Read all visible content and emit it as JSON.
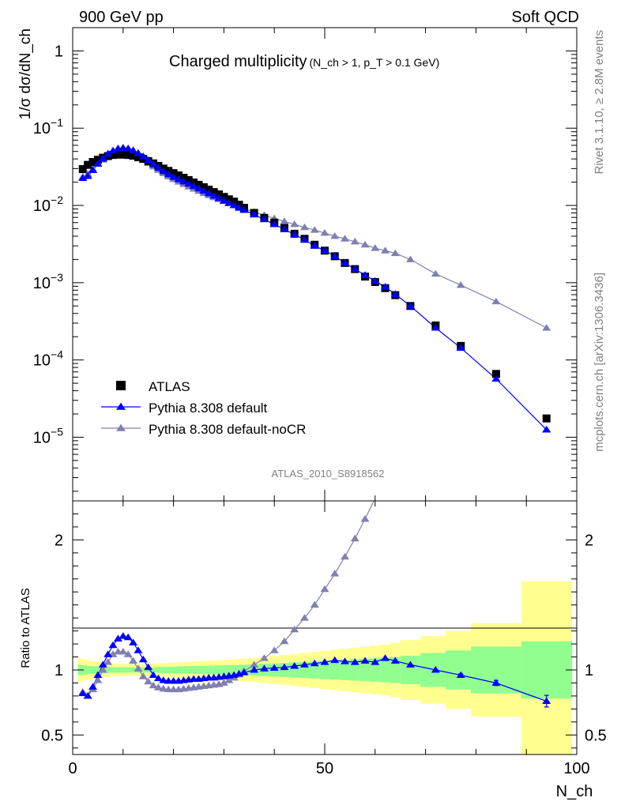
{
  "header": {
    "left": "900 GeV pp",
    "right": "Soft QCD"
  },
  "side": {
    "rivet": "Rivet 3.1.10, ≥ 2.8M events",
    "mcplots": "mcplots.cern.ch [arXiv:1306.3436]"
  },
  "chart_data": [
    {
      "type": "scatter",
      "title": "Charged multiplicity",
      "title_cut": "(N_ch > 1, p_T > 0.1 GeV)",
      "ylabel": "1/σ dσ/dN_ch",
      "yscale": "log",
      "ylim": [
        1.5e-06,
        2.0
      ],
      "xlim": [
        0,
        100
      ],
      "analysis": "ATLAS_2010_S8918562",
      "y_ticks": [
        {
          "label_base": "1",
          "label_exp": "",
          "value": 1
        },
        {
          "label_base": "10",
          "label_exp": "−1",
          "value": 0.1
        },
        {
          "label_base": "10",
          "label_exp": "−2",
          "value": 0.01
        },
        {
          "label_base": "10",
          "label_exp": "−3",
          "value": 0.001
        },
        {
          "label_base": "10",
          "label_exp": "−4",
          "value": 0.0001
        },
        {
          "label_base": "10",
          "label_exp": "−5",
          "value": 1e-05
        }
      ],
      "legend": [
        {
          "name": "ATLAS",
          "marker": "square",
          "color": "#000000"
        },
        {
          "name": "Pythia 8.308 default",
          "marker": "triangle",
          "color": "#0000ff"
        },
        {
          "name": "Pythia 8.308 default-noCR",
          "marker": "triangle",
          "color": "#8080b0"
        }
      ],
      "legend_position": "bottom-left",
      "series": [
        {
          "name": "ATLAS",
          "x": [
            2,
            3,
            4,
            5,
            6,
            7,
            8,
            9,
            10,
            11,
            12,
            13,
            14,
            15,
            16,
            17,
            18,
            19,
            20,
            21,
            22,
            23,
            24,
            25,
            26,
            27,
            28,
            29,
            30,
            31,
            32,
            33,
            34,
            36,
            38,
            40,
            42,
            44,
            46,
            48,
            50,
            52,
            54,
            56,
            58,
            60,
            62,
            64,
            67,
            72,
            77,
            84,
            94
          ],
          "y": [
            0.0295,
            0.0335,
            0.0365,
            0.039,
            0.0415,
            0.0435,
            0.045,
            0.0455,
            0.0455,
            0.045,
            0.044,
            0.042,
            0.04,
            0.0375,
            0.035,
            0.0325,
            0.03,
            0.028,
            0.0262,
            0.0245,
            0.0228,
            0.0213,
            0.0198,
            0.0185,
            0.0172,
            0.016,
            0.0149,
            0.0139,
            0.0129,
            0.012,
            0.0112,
            0.0102,
            0.0093,
            0.008,
            0.0069,
            0.006,
            0.0051,
            0.0043,
            0.0037,
            0.0031,
            0.0026,
            0.0022,
            0.0018,
            0.0015,
            0.0012,
            0.00102,
            0.00085,
            0.00069,
            0.0005,
            0.00028,
            0.000152,
            6.6e-05,
            1.75e-05
          ]
        },
        {
          "name": "Pythia 8.308 default",
          "x": [
            2,
            3,
            4,
            5,
            6,
            7,
            8,
            9,
            10,
            11,
            12,
            13,
            14,
            15,
            16,
            17,
            18,
            19,
            20,
            21,
            22,
            23,
            24,
            25,
            26,
            27,
            28,
            29,
            30,
            31,
            32,
            33,
            34,
            36,
            38,
            40,
            42,
            44,
            46,
            48,
            50,
            52,
            54,
            56,
            58,
            60,
            62,
            64,
            67,
            72,
            77,
            84,
            94
          ],
          "y": [
            0.0225,
            0.024,
            0.0285,
            0.0345,
            0.0405,
            0.0465,
            0.051,
            0.0545,
            0.0555,
            0.0545,
            0.0515,
            0.0475,
            0.043,
            0.0385,
            0.034,
            0.0305,
            0.0275,
            0.0252,
            0.0233,
            0.0217,
            0.0203,
            0.019,
            0.0177,
            0.0165,
            0.0154,
            0.0143,
            0.0133,
            0.0124,
            0.0115,
            0.0107,
            0.01,
            0.0093,
            0.0087,
            0.0076,
            0.0066,
            0.0057,
            0.0049,
            0.0042,
            0.0036,
            0.003,
            0.0026,
            0.0022,
            0.0018,
            0.0015,
            0.00125,
            0.00105,
            0.00088,
            0.00071,
            0.0005,
            0.00026,
            0.000143,
            5.7e-05,
            1.25e-05
          ]
        },
        {
          "name": "Pythia 8.308 default-noCR",
          "x": [
            2,
            3,
            4,
            5,
            6,
            7,
            8,
            9,
            10,
            11,
            12,
            13,
            14,
            15,
            16,
            17,
            18,
            19,
            20,
            21,
            22,
            23,
            24,
            25,
            26,
            27,
            28,
            29,
            30,
            31,
            32,
            33,
            34,
            36,
            38,
            40,
            42,
            44,
            46,
            48,
            50,
            52,
            54,
            56,
            58,
            60,
            62,
            64,
            67,
            72,
            77,
            84,
            94
          ],
          "y": [
            0.0235,
            0.0255,
            0.0295,
            0.0345,
            0.039,
            0.043,
            0.047,
            0.049,
            0.0495,
            0.0485,
            0.046,
            0.0425,
            0.039,
            0.0352,
            0.0318,
            0.0287,
            0.026,
            0.0237,
            0.0218,
            0.0202,
            0.0188,
            0.0175,
            0.0164,
            0.0153,
            0.0144,
            0.0135,
            0.0127,
            0.012,
            0.0113,
            0.0107,
            0.0101,
            0.0096,
            0.0091,
            0.0082,
            0.0075,
            0.0068,
            0.0062,
            0.0057,
            0.0052,
            0.0048,
            0.0044,
            0.004,
            0.0037,
            0.0034,
            0.0031,
            0.0028,
            0.0026,
            0.0024,
            0.002,
            0.0013,
            0.00093,
            0.00057,
            0.00026
          ]
        }
      ]
    },
    {
      "type": "scatter",
      "ylabel": "Ratio to ATLAS",
      "xlabel": "N_ch",
      "xlim": [
        0,
        100
      ],
      "ylim": [
        0.35,
        2.3
      ],
      "y_ticks": [
        {
          "label": "0.5",
          "value": 0.5
        },
        {
          "label": "1",
          "value": 1
        },
        {
          "label": "2",
          "value": 2
        }
      ],
      "x_ticks": [
        {
          "label": "0",
          "value": 0
        },
        {
          "label": "50",
          "value": 50
        },
        {
          "label": "100",
          "value": 100
        }
      ],
      "bands": {
        "edges": [
          1,
          2,
          3,
          4,
          5,
          6,
          7,
          8,
          9,
          10,
          11,
          12,
          13,
          14,
          15,
          16,
          17,
          18,
          19,
          20,
          21,
          22,
          23,
          24,
          25,
          26,
          27,
          28,
          29,
          30,
          31,
          32,
          33,
          35,
          37,
          39,
          41,
          43,
          45,
          47,
          49,
          51,
          53,
          55,
          57,
          59,
          61,
          63,
          65,
          69,
          74,
          79,
          89,
          99
        ],
        "inner_color": "#90ff90",
        "outer_color": "#ffff90",
        "inner_halfwidth": [
          0.04,
          0.035,
          0.03,
          0.028,
          0.026,
          0.024,
          0.022,
          0.02,
          0.02,
          0.02,
          0.02,
          0.02,
          0.02,
          0.02,
          0.021,
          0.022,
          0.023,
          0.024,
          0.025,
          0.026,
          0.027,
          0.028,
          0.029,
          0.03,
          0.031,
          0.032,
          0.033,
          0.034,
          0.035,
          0.036,
          0.037,
          0.038,
          0.04,
          0.043,
          0.047,
          0.05,
          0.054,
          0.058,
          0.062,
          0.066,
          0.07,
          0.074,
          0.078,
          0.082,
          0.086,
          0.09,
          0.095,
          0.1,
          0.11,
          0.13,
          0.15,
          0.18,
          0.22,
          0.45
        ],
        "outer_halfwidth": [
          0.09,
          0.08,
          0.07,
          0.065,
          0.06,
          0.055,
          0.05,
          0.048,
          0.047,
          0.046,
          0.046,
          0.046,
          0.046,
          0.047,
          0.048,
          0.05,
          0.052,
          0.054,
          0.056,
          0.058,
          0.06,
          0.062,
          0.064,
          0.066,
          0.068,
          0.07,
          0.072,
          0.074,
          0.076,
          0.078,
          0.08,
          0.083,
          0.087,
          0.092,
          0.1,
          0.107,
          0.115,
          0.123,
          0.131,
          0.139,
          0.147,
          0.155,
          0.163,
          0.171,
          0.179,
          0.187,
          0.195,
          0.21,
          0.23,
          0.26,
          0.3,
          0.36,
          0.68,
          0.82
        ]
      },
      "series": [
        {
          "name": "Pythia 8.308 default",
          "x": [
            2,
            3,
            4,
            5,
            6,
            7,
            8,
            9,
            10,
            11,
            12,
            13,
            14,
            15,
            16,
            17,
            18,
            19,
            20,
            21,
            22,
            23,
            24,
            25,
            26,
            27,
            28,
            29,
            30,
            31,
            32,
            33,
            34,
            36,
            38,
            40,
            42,
            44,
            46,
            48,
            50,
            52,
            54,
            56,
            58,
            60,
            62,
            64,
            67,
            72,
            77,
            84,
            94
          ],
          "y": [
            0.82,
            0.8,
            0.87,
            0.96,
            1.04,
            1.12,
            1.19,
            1.24,
            1.26,
            1.25,
            1.21,
            1.15,
            1.08,
            1.02,
            0.96,
            0.935,
            0.92,
            0.915,
            0.915,
            0.915,
            0.92,
            0.925,
            0.93,
            0.93,
            0.935,
            0.94,
            0.94,
            0.945,
            0.95,
            0.955,
            0.96,
            0.97,
            0.98,
            1.0,
            1.01,
            1.015,
            1.02,
            1.03,
            1.04,
            1.05,
            1.06,
            1.075,
            1.065,
            1.06,
            1.07,
            1.06,
            1.09,
            1.07,
            1.04,
            1.0,
            0.96,
            0.9,
            0.76
          ],
          "yerr": [
            0,
            0,
            0,
            0,
            0,
            0,
            0,
            0,
            0,
            0,
            0,
            0,
            0,
            0,
            0,
            0,
            0,
            0,
            0,
            0,
            0,
            0,
            0,
            0,
            0,
            0,
            0,
            0,
            0,
            0,
            0,
            0,
            0,
            0,
            0,
            0,
            0,
            0,
            0,
            0,
            0,
            0,
            0,
            0,
            0,
            0,
            0,
            0,
            0,
            0,
            0.01,
            0.02,
            0.045
          ]
        },
        {
          "name": "Pythia 8.308 default-noCR",
          "x": [
            2,
            3,
            4,
            5,
            6,
            7,
            8,
            9,
            10,
            11,
            12,
            13,
            14,
            15,
            16,
            17,
            18,
            19,
            20,
            21,
            22,
            23,
            24,
            25,
            26,
            27,
            28,
            29,
            30,
            31,
            32,
            33,
            34,
            36,
            38,
            40,
            42,
            44,
            46,
            48,
            50,
            52,
            54,
            56,
            58,
            60
          ],
          "y": [
            0.83,
            0.8,
            0.85,
            0.92,
            1.0,
            1.06,
            1.12,
            1.14,
            1.14,
            1.12,
            1.07,
            1.01,
            0.95,
            0.91,
            0.88,
            0.865,
            0.855,
            0.85,
            0.85,
            0.85,
            0.855,
            0.86,
            0.865,
            0.87,
            0.875,
            0.88,
            0.885,
            0.89,
            0.9,
            0.92,
            0.94,
            0.965,
            0.99,
            1.04,
            1.09,
            1.15,
            1.22,
            1.31,
            1.4,
            1.5,
            1.62,
            1.74,
            1.87,
            2.01,
            2.16,
            2.32
          ]
        }
      ]
    }
  ]
}
